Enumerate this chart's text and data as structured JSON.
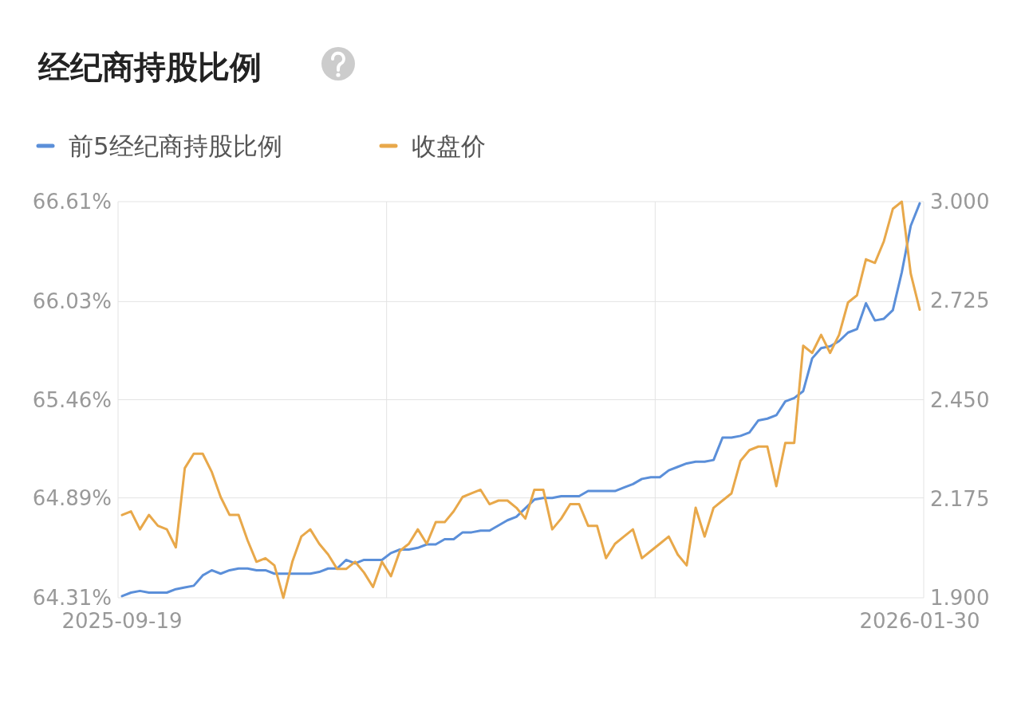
{
  "chart_data": {
    "type": "line",
    "title": "经纪商持股比例",
    "categories": [
      "2025-09-19",
      null,
      null,
      null,
      null,
      null,
      null,
      null,
      null,
      null,
      null,
      null,
      null,
      null,
      null,
      null,
      null,
      null,
      null,
      null,
      null,
      null,
      null,
      null,
      null,
      null,
      null,
      null,
      null,
      null,
      null,
      null,
      null,
      null,
      null,
      null,
      null,
      null,
      null,
      null,
      null,
      null,
      null,
      null,
      null,
      null,
      null,
      null,
      null,
      null,
      null,
      null,
      null,
      null,
      null,
      null,
      null,
      null,
      null,
      null,
      null,
      null,
      null,
      null,
      null,
      null,
      null,
      null,
      null,
      null,
      null,
      null,
      null,
      null,
      null,
      null,
      null,
      null,
      null,
      null,
      null,
      null,
      null,
      null,
      null,
      null,
      null,
      null,
      null,
      "2026-01-30"
    ],
    "series": [
      {
        "name": "前5经纪商持股比例",
        "color": "#5b8fd9",
        "values": [
          64.32,
          64.34,
          64.35,
          64.34,
          64.34,
          64.34,
          64.36,
          64.37,
          64.38,
          64.44,
          64.47,
          64.45,
          64.47,
          64.48,
          64.48,
          64.47,
          64.47,
          64.45,
          64.45,
          64.45,
          64.45,
          64.45,
          64.46,
          64.48,
          64.48,
          64.53,
          64.51,
          64.53,
          64.53,
          64.53,
          64.57,
          64.59,
          64.59,
          64.6,
          64.62,
          64.62,
          64.65,
          64.65,
          64.69,
          64.69,
          64.7,
          64.7,
          64.73,
          64.76,
          64.78,
          64.83,
          64.88,
          64.89,
          64.89,
          64.9,
          64.9,
          64.9,
          64.93,
          64.93,
          64.93,
          64.93,
          64.95,
          64.97,
          65.0,
          65.01,
          65.01,
          65.05,
          65.07,
          65.09,
          65.1,
          65.1,
          65.11,
          65.24,
          65.24,
          65.25,
          65.27,
          65.34,
          65.35,
          65.37,
          65.45,
          65.47,
          65.51,
          65.7,
          65.76,
          65.77,
          65.8,
          65.85,
          65.87,
          66.02,
          65.92,
          65.93,
          65.98,
          66.2,
          66.47,
          66.6
        ]
      },
      {
        "name": "收盘价",
        "color": "#e8a84a",
        "axis": "y2",
        "values": [
          2.13,
          2.14,
          2.09,
          2.13,
          2.1,
          2.09,
          2.04,
          2.26,
          2.3,
          2.3,
          2.25,
          2.18,
          2.13,
          2.13,
          2.06,
          2.0,
          2.01,
          1.99,
          1.9,
          2.0,
          2.07,
          2.09,
          2.05,
          2.02,
          1.98,
          1.98,
          2.0,
          1.97,
          1.93,
          2.0,
          1.96,
          2.03,
          2.05,
          2.09,
          2.05,
          2.11,
          2.11,
          2.14,
          2.18,
          2.19,
          2.2,
          2.16,
          2.17,
          2.17,
          2.15,
          2.12,
          2.2,
          2.2,
          2.09,
          2.12,
          2.16,
          2.16,
          2.1,
          2.1,
          2.01,
          2.05,
          2.07,
          2.09,
          2.01,
          2.03,
          2.05,
          2.07,
          2.02,
          1.99,
          2.15,
          2.07,
          2.15,
          2.17,
          2.19,
          2.28,
          2.31,
          2.32,
          2.32,
          2.21,
          2.33,
          2.33,
          2.6,
          2.58,
          2.63,
          2.58,
          2.63,
          2.72,
          2.74,
          2.84,
          2.83,
          2.89,
          2.98,
          3.0,
          2.8,
          2.7
        ]
      }
    ],
    "ylim": [
      64.31,
      66.61
    ],
    "yticks": [
      {
        "value": 64.31,
        "label": "64.31%"
      },
      {
        "value": 64.89,
        "label": "64.89%"
      },
      {
        "value": 65.46,
        "label": "65.46%"
      },
      {
        "value": 66.03,
        "label": "66.03%"
      },
      {
        "value": 66.61,
        "label": "66.61%"
      }
    ],
    "y2lim": [
      1.9,
      3.0
    ],
    "y2ticks": [
      {
        "value": 1.9,
        "label": "1.900"
      },
      {
        "value": 2.175,
        "label": "2.175"
      },
      {
        "value": 2.45,
        "label": "2.450"
      },
      {
        "value": 2.725,
        "label": "2.725"
      },
      {
        "value": 3.0,
        "label": "3.000"
      }
    ],
    "grid": true,
    "legend": "top left",
    "marker": "none",
    "line_style": "solid"
  }
}
